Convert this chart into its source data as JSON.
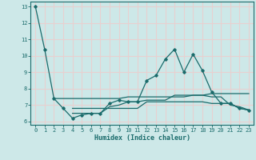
{
  "xlabel": "Humidex (Indice chaleur)",
  "background_color": "#cde8e8",
  "grid_color": "#e8d0d0",
  "line_color": "#1a6b6b",
  "xlim": [
    -0.5,
    23.5
  ],
  "ylim": [
    5.8,
    13.3
  ],
  "yticks": [
    6,
    7,
    8,
    9,
    10,
    11,
    12,
    13
  ],
  "xticks": [
    0,
    1,
    2,
    3,
    4,
    5,
    6,
    7,
    8,
    9,
    10,
    11,
    12,
    13,
    14,
    15,
    16,
    17,
    18,
    19,
    20,
    21,
    22,
    23
  ],
  "line1_x": [
    0,
    1,
    2,
    3,
    4,
    5,
    6,
    7,
    8,
    9,
    10,
    11,
    12,
    13,
    14,
    15,
    16,
    17,
    18,
    19,
    20,
    21,
    22,
    23
  ],
  "line1_y": [
    13.0,
    10.4,
    7.4,
    6.8,
    6.2,
    6.4,
    6.5,
    6.5,
    7.1,
    7.3,
    7.2,
    7.2,
    8.5,
    8.8,
    9.8,
    10.4,
    9.0,
    10.1,
    9.1,
    7.8,
    7.1,
    7.1,
    6.8,
    6.7
  ],
  "line2_x": [
    2,
    3,
    4,
    5,
    6,
    7,
    8,
    9,
    10,
    11,
    12,
    13,
    14,
    15,
    16,
    17,
    18,
    19,
    20,
    21,
    22,
    23
  ],
  "line2_y": [
    7.4,
    7.4,
    7.4,
    7.4,
    7.4,
    7.4,
    7.4,
    7.4,
    7.5,
    7.5,
    7.5,
    7.5,
    7.5,
    7.5,
    7.5,
    7.6,
    7.6,
    7.7,
    7.7,
    7.7,
    7.7,
    7.7
  ],
  "line3_x": [
    4,
    5,
    6,
    7,
    8,
    9,
    10,
    11,
    12,
    13,
    14,
    15,
    16,
    17,
    18,
    19,
    20,
    21,
    22,
    23
  ],
  "line3_y": [
    6.8,
    6.8,
    6.8,
    6.8,
    6.8,
    6.8,
    6.8,
    6.8,
    7.2,
    7.2,
    7.2,
    7.2,
    7.2,
    7.2,
    7.2,
    7.1,
    7.1,
    7.1,
    6.8,
    6.7
  ],
  "line4_x": [
    4,
    5,
    6,
    7,
    8,
    9,
    10,
    11,
    12,
    13,
    14,
    15,
    16,
    17,
    18,
    19,
    20,
    21,
    22,
    23
  ],
  "line4_y": [
    6.5,
    6.5,
    6.5,
    6.5,
    6.9,
    7.0,
    7.2,
    7.2,
    7.3,
    7.3,
    7.3,
    7.6,
    7.6,
    7.6,
    7.6,
    7.5,
    7.5,
    7.0,
    6.9,
    6.7
  ]
}
